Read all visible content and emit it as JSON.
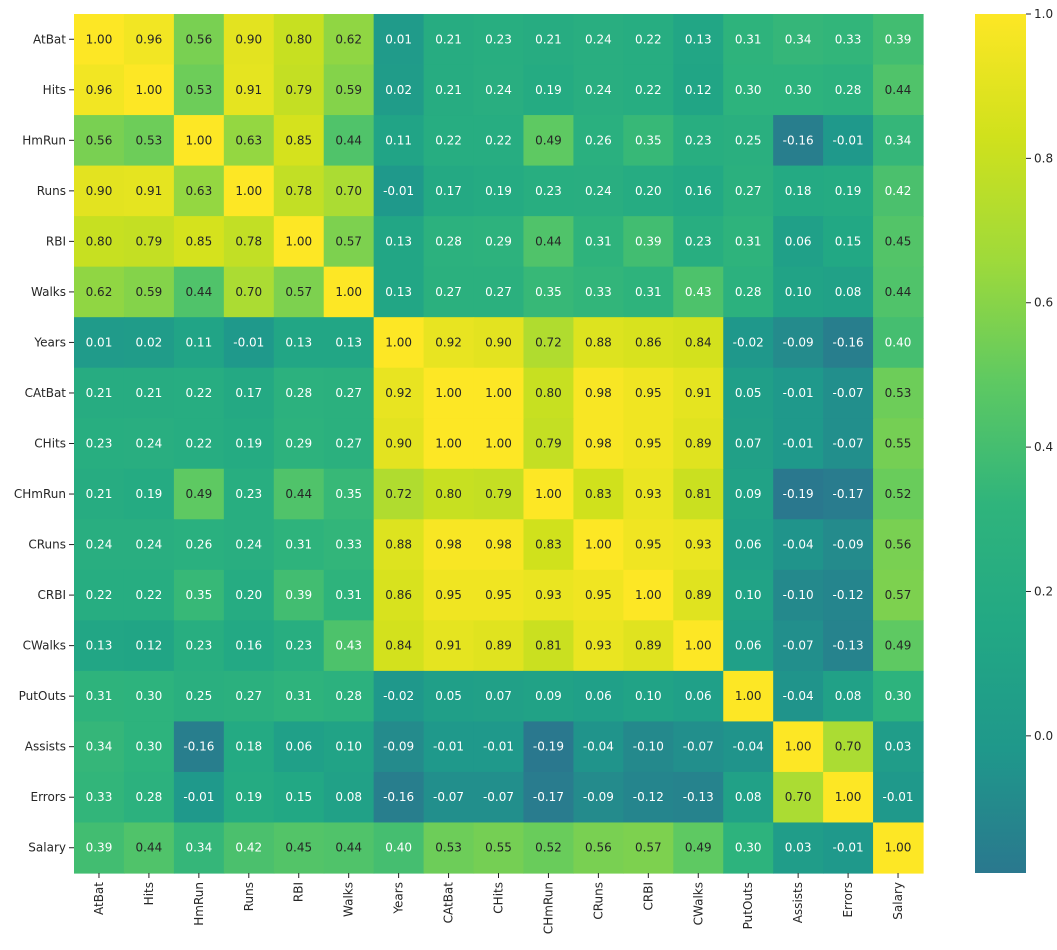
{
  "chart_data": {
    "type": "heatmap",
    "title": "",
    "xlabel": "",
    "ylabel": "",
    "labels": [
      "AtBat",
      "Hits",
      "HmRun",
      "Runs",
      "RBI",
      "Walks",
      "Years",
      "CAtBat",
      "CHits",
      "CHmRun",
      "CRuns",
      "CRBI",
      "CWalks",
      "PutOuts",
      "Assists",
      "Errors",
      "Salary"
    ],
    "matrix": [
      [
        1.0,
        0.96,
        0.56,
        0.9,
        0.8,
        0.62,
        0.01,
        0.21,
        0.23,
        0.21,
        0.24,
        0.22,
        0.13,
        0.31,
        0.34,
        0.33,
        0.39
      ],
      [
        0.96,
        1.0,
        0.53,
        0.91,
        0.79,
        0.59,
        0.02,
        0.21,
        0.24,
        0.19,
        0.24,
        0.22,
        0.12,
        0.3,
        0.3,
        0.28,
        0.44
      ],
      [
        0.56,
        0.53,
        1.0,
        0.63,
        0.85,
        0.44,
        0.11,
        0.22,
        0.22,
        0.49,
        0.26,
        0.35,
        0.23,
        0.25,
        -0.16,
        -0.01,
        0.34
      ],
      [
        0.9,
        0.91,
        0.63,
        1.0,
        0.78,
        0.7,
        -0.01,
        0.17,
        0.19,
        0.23,
        0.24,
        0.2,
        0.16,
        0.27,
        0.18,
        0.19,
        0.42
      ],
      [
        0.8,
        0.79,
        0.85,
        0.78,
        1.0,
        0.57,
        0.13,
        0.28,
        0.29,
        0.44,
        0.31,
        0.39,
        0.23,
        0.31,
        0.06,
        0.15,
        0.45
      ],
      [
        0.62,
        0.59,
        0.44,
        0.7,
        0.57,
        1.0,
        0.13,
        0.27,
        0.27,
        0.35,
        0.33,
        0.31,
        0.43,
        0.28,
        0.1,
        0.08,
        0.44
      ],
      [
        0.01,
        0.02,
        0.11,
        -0.01,
        0.13,
        0.13,
        1.0,
        0.92,
        0.9,
        0.72,
        0.88,
        0.86,
        0.84,
        -0.02,
        -0.09,
        -0.16,
        0.4
      ],
      [
        0.21,
        0.21,
        0.22,
        0.17,
        0.28,
        0.27,
        0.92,
        1.0,
        1.0,
        0.8,
        0.98,
        0.95,
        0.91,
        0.05,
        -0.01,
        -0.07,
        0.53
      ],
      [
        0.23,
        0.24,
        0.22,
        0.19,
        0.29,
        0.27,
        0.9,
        1.0,
        1.0,
        0.79,
        0.98,
        0.95,
        0.89,
        0.07,
        -0.01,
        -0.07,
        0.55
      ],
      [
        0.21,
        0.19,
        0.49,
        0.23,
        0.44,
        0.35,
        0.72,
        0.8,
        0.79,
        1.0,
        0.83,
        0.93,
        0.81,
        0.09,
        -0.19,
        -0.17,
        0.52
      ],
      [
        0.24,
        0.24,
        0.26,
        0.24,
        0.31,
        0.33,
        0.88,
        0.98,
        0.98,
        0.83,
        1.0,
        0.95,
        0.93,
        0.06,
        -0.04,
        -0.09,
        0.56
      ],
      [
        0.22,
        0.22,
        0.35,
        0.2,
        0.39,
        0.31,
        0.86,
        0.95,
        0.95,
        0.93,
        0.95,
        1.0,
        0.89,
        0.1,
        -0.1,
        -0.12,
        0.57
      ],
      [
        0.13,
        0.12,
        0.23,
        0.16,
        0.23,
        0.43,
        0.84,
        0.91,
        0.89,
        0.81,
        0.93,
        0.89,
        1.0,
        0.06,
        -0.07,
        -0.13,
        0.49
      ],
      [
        0.31,
        0.3,
        0.25,
        0.27,
        0.31,
        0.28,
        -0.02,
        0.05,
        0.07,
        0.09,
        0.06,
        0.1,
        0.06,
        1.0,
        -0.04,
        0.08,
        0.3
      ],
      [
        0.34,
        0.3,
        -0.16,
        0.18,
        0.06,
        0.1,
        -0.09,
        -0.01,
        -0.01,
        -0.19,
        -0.04,
        -0.1,
        -0.07,
        -0.04,
        1.0,
        0.7,
        0.03
      ],
      [
        0.33,
        0.28,
        -0.01,
        0.19,
        0.15,
        0.08,
        -0.16,
        -0.07,
        -0.07,
        -0.17,
        -0.09,
        -0.12,
        -0.13,
        0.08,
        0.7,
        1.0,
        -0.01
      ],
      [
        0.39,
        0.44,
        0.34,
        0.42,
        0.45,
        0.44,
        0.4,
        0.53,
        0.55,
        0.52,
        0.56,
        0.57,
        0.49,
        0.3,
        0.03,
        -0.01,
        1.0
      ]
    ],
    "value_range": [
      -0.19,
      1.0
    ],
    "colormap": [
      "#2a788e",
      "#1f988b",
      "#22a884",
      "#2fb47c",
      "#5ec962",
      "#9fda3a",
      "#d0e11c",
      "#fde725"
    ],
    "colorbar": {
      "ticks": [
        0.0,
        0.2,
        0.4,
        0.6,
        0.8,
        1.0
      ],
      "tick_labels": [
        "0.0",
        "0.2",
        "0.4",
        "0.6",
        "0.8",
        "1.0"
      ]
    },
    "annotation_format": "2 decimals",
    "grid": false,
    "legend": "colorbar-right"
  }
}
